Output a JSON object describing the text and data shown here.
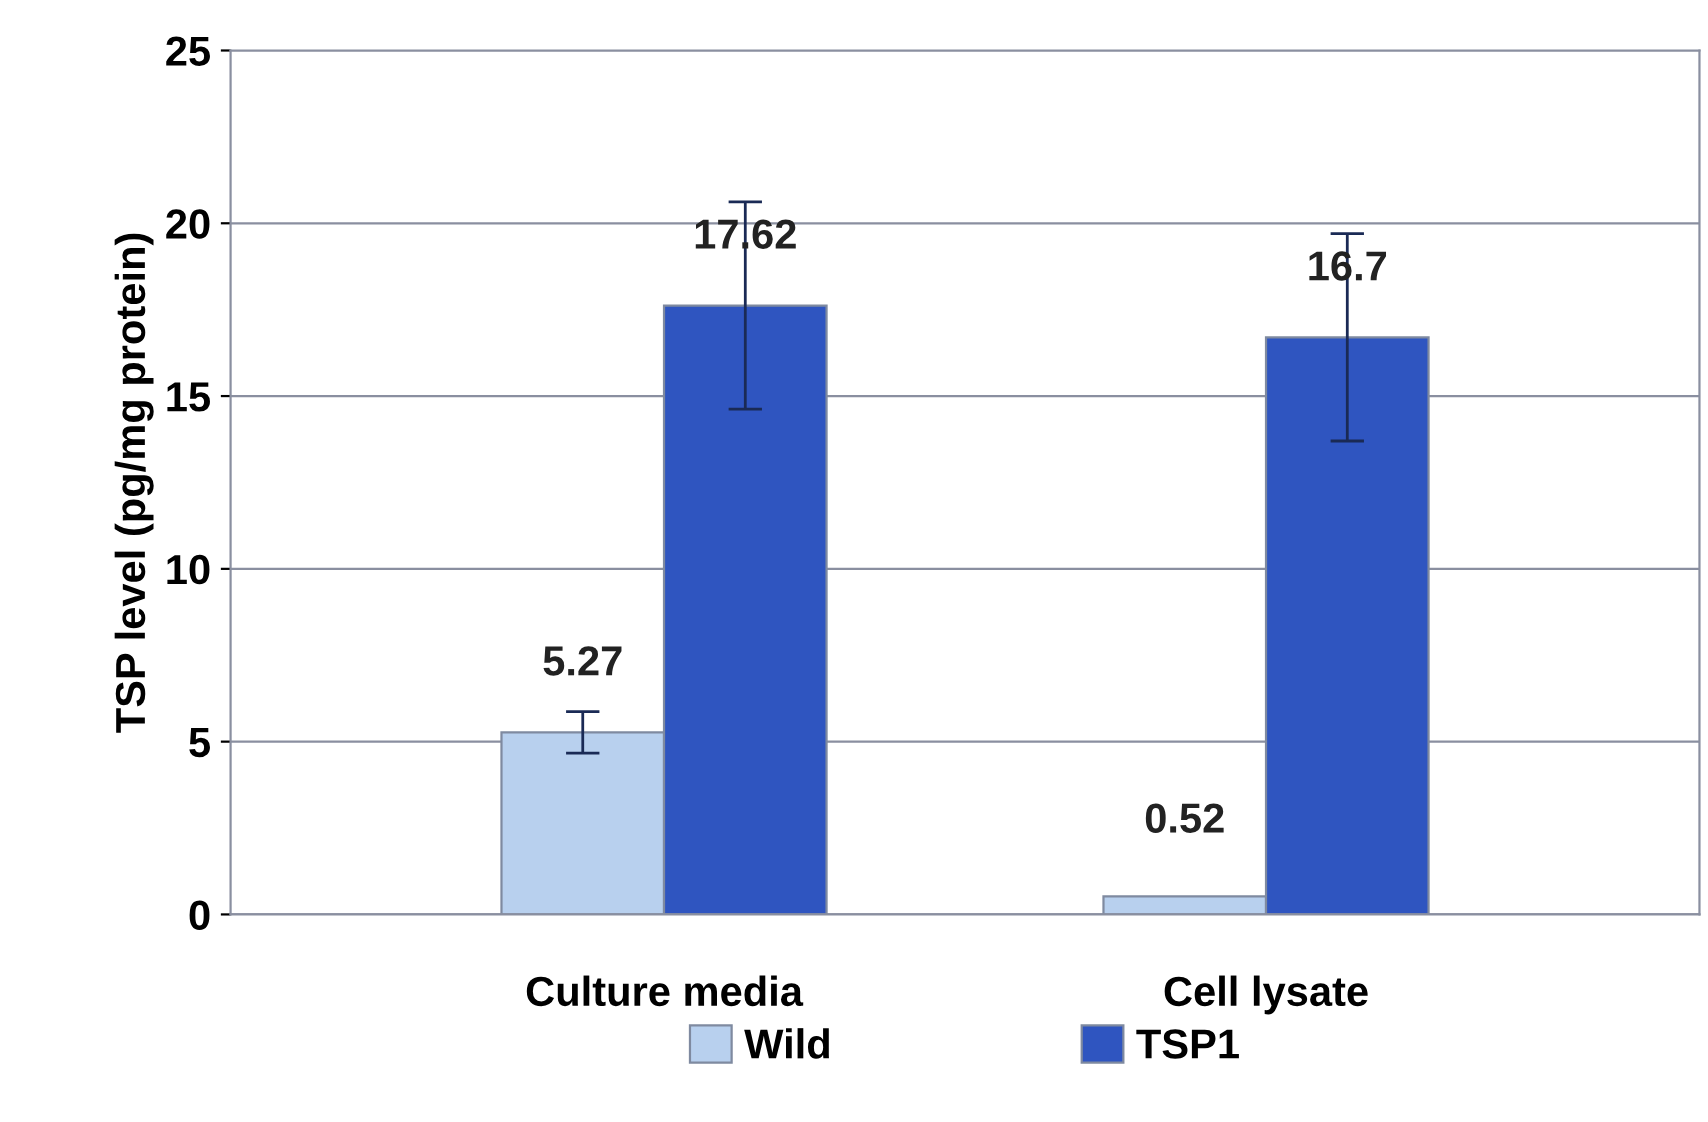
{
  "chart_data": {
    "type": "bar",
    "ylabel": "TSP level (pg/mg protein)",
    "categories": [
      "Culture media",
      "Cell lysate"
    ],
    "series": [
      {
        "name": "Wild",
        "color": "#b8d0ee",
        "values": [
          5.27,
          0.52
        ],
        "errors": [
          0.6,
          null
        ]
      },
      {
        "name": "TSP1",
        "color": "#2f55c0",
        "values": [
          17.62,
          16.7
        ],
        "errors": [
          3,
          3
        ]
      }
    ],
    "data_labels": true,
    "ylim": [
      0,
      25
    ],
    "yticks": [
      0,
      5,
      10,
      15,
      20,
      25
    ],
    "grid": "y",
    "legend": "bottom"
  }
}
